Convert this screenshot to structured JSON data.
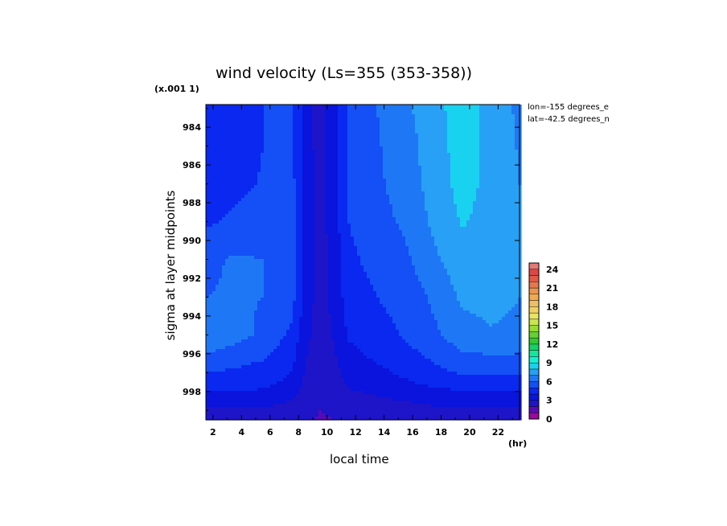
{
  "chart_data": {
    "type": "heatmap",
    "title": "wind velocity (Ls=355 (353-358))",
    "xlabel": "local time",
    "ylabel": "sigma at layer midpoints",
    "x_unit": "(hr)",
    "y_scale_note": "(x.001 1)",
    "x_ticks": [
      2,
      4,
      6,
      8,
      10,
      12,
      14,
      16,
      18,
      20,
      22
    ],
    "y_ticks": [
      984,
      986,
      988,
      990,
      992,
      994,
      996,
      998
    ],
    "xlim": [
      1.5,
      23.5
    ],
    "ylim": [
      999.5,
      982.8
    ],
    "colorbar": {
      "ticks": [
        0,
        3,
        6,
        9,
        12,
        15,
        18,
        21,
        24
      ],
      "levels": [
        0,
        1,
        2,
        3,
        4,
        5,
        6,
        7,
        8,
        9,
        10,
        11,
        12,
        13,
        14,
        15,
        16,
        17,
        18,
        19,
        20,
        21,
        22,
        23,
        24,
        25
      ],
      "colors": [
        "#9a0a9a",
        "#5a0ab4",
        "#1e14c8",
        "#0a14dc",
        "#0a28f0",
        "#1450f5",
        "#1e78f5",
        "#28a0f5",
        "#19d2f0",
        "#14f0d2",
        "#14e6a0",
        "#14d264",
        "#32c832",
        "#64d232",
        "#96dc32",
        "#c8e650",
        "#e6e664",
        "#f0d264",
        "#f0be64",
        "#f0aa50",
        "#eb9650",
        "#e67850",
        "#e15a46",
        "#dc4646",
        "#e67878"
      ]
    },
    "x": [
      1.5,
      3.5,
      5.5,
      7.5,
      8.5,
      9.5,
      10.5,
      11.5,
      13.5,
      15.5,
      17.5,
      19.5,
      21.5,
      23.5
    ],
    "y": [
      983,
      985,
      987,
      989,
      991,
      993,
      995,
      996.5,
      997.5,
      998.5,
      999.5
    ],
    "z": [
      [
        4.0,
        4.5,
        5.0,
        5.0,
        3.5,
        2.6,
        3.5,
        5.3,
        6.0,
        6.8,
        7.6,
        8.6,
        7.6,
        6.8
      ],
      [
        4.0,
        4.2,
        5.0,
        5.2,
        3.5,
        2.6,
        3.5,
        5.2,
        5.9,
        6.6,
        7.5,
        8.5,
        7.7,
        6.9
      ],
      [
        4.3,
        4.7,
        5.1,
        5.4,
        3.6,
        2.6,
        3.5,
        5.1,
        5.8,
        6.5,
        7.4,
        8.4,
        7.7,
        7.0
      ],
      [
        4.8,
        5.2,
        5.5,
        5.6,
        3.6,
        2.6,
        3.5,
        5.0,
        5.6,
        6.2,
        7.2,
        8.1,
        7.6,
        7.1
      ],
      [
        5.8,
        6.1,
        6.0,
        5.7,
        3.7,
        2.6,
        3.4,
        4.8,
        5.3,
        5.8,
        6.8,
        7.6,
        7.5,
        7.1
      ],
      [
        6.0,
        6.1,
        6.0,
        5.4,
        3.6,
        2.6,
        3.3,
        4.5,
        5.0,
        5.4,
        6.2,
        7.2,
        7.3,
        7.0
      ],
      [
        7.0,
        6.4,
        5.8,
        4.8,
        3.3,
        2.5,
        3.1,
        4.1,
        4.6,
        5.1,
        5.8,
        6.6,
        6.9,
        6.8
      ],
      [
        5.4,
        5.2,
        4.9,
        4.2,
        3.0,
        2.4,
        2.8,
        3.6,
        4.0,
        4.5,
        5.0,
        5.6,
        5.6,
        5.6
      ],
      [
        4.6,
        4.5,
        4.4,
        3.7,
        2.8,
        2.3,
        2.6,
        3.2,
        3.5,
        3.9,
        4.3,
        4.6,
        4.6,
        4.6
      ],
      [
        3.4,
        3.4,
        3.3,
        3.0,
        2.5,
        2.1,
        2.3,
        2.6,
        2.8,
        3.0,
        3.2,
        3.3,
        3.3,
        3.3
      ],
      [
        2.4,
        2.4,
        2.4,
        2.3,
        2.1,
        1.9,
        2.0,
        2.1,
        2.2,
        2.3,
        2.4,
        2.4,
        2.4,
        2.4
      ]
    ],
    "annotations": [
      "lon=-155 degrees_e",
      "lat=-42.5 degrees_n"
    ]
  }
}
